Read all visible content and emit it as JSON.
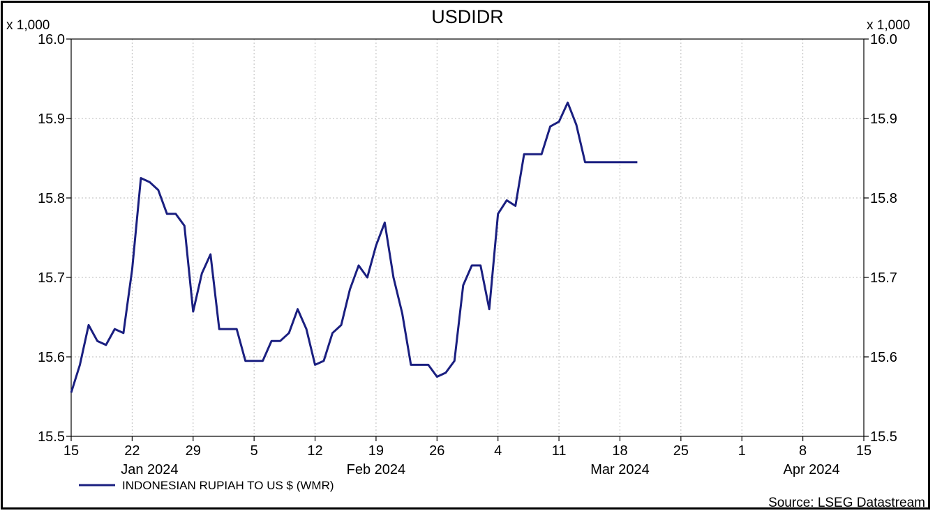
{
  "chart_data": {
    "type": "line",
    "title": "USDIDR",
    "y_multiplier_label": "x 1,000",
    "ylim": [
      15.5,
      16.0
    ],
    "y_ticks": [
      {
        "value": 15.5,
        "label": "15.5"
      },
      {
        "value": 15.6,
        "label": "15.6"
      },
      {
        "value": 15.7,
        "label": "15.7"
      },
      {
        "value": 15.8,
        "label": "15.8"
      },
      {
        "value": 15.9,
        "label": "15.9"
      },
      {
        "value": 16.0,
        "label": "16.0"
      }
    ],
    "xlim": [
      "2024-01-15",
      "2024-04-15"
    ],
    "x_ticks": [
      {
        "date": "2024-01-15",
        "label": "15"
      },
      {
        "date": "2024-01-22",
        "label": "22"
      },
      {
        "date": "2024-01-29",
        "label": "29"
      },
      {
        "date": "2024-02-05",
        "label": "5"
      },
      {
        "date": "2024-02-12",
        "label": "12"
      },
      {
        "date": "2024-02-19",
        "label": "19"
      },
      {
        "date": "2024-02-26",
        "label": "26"
      },
      {
        "date": "2024-03-04",
        "label": "4"
      },
      {
        "date": "2024-03-11",
        "label": "11"
      },
      {
        "date": "2024-03-18",
        "label": "18"
      },
      {
        "date": "2024-03-25",
        "label": "25"
      },
      {
        "date": "2024-04-01",
        "label": "1"
      },
      {
        "date": "2024-04-08",
        "label": "8"
      },
      {
        "date": "2024-04-15",
        "label": "15"
      }
    ],
    "month_labels": [
      {
        "date": "2024-01-24",
        "label": "Jan 2024"
      },
      {
        "date": "2024-02-19",
        "label": "Feb 2024"
      },
      {
        "date": "2024-03-18",
        "label": "Mar 2024"
      },
      {
        "date": "2024-04-09",
        "label": "Apr 2024"
      }
    ],
    "grid": true,
    "legend_position": "bottom-left",
    "source": "Source: LSEG Datastream",
    "series": [
      {
        "name": "INDONESIAN RUPIAH TO US $ (WMR)",
        "color": "#1a1f80",
        "points": [
          [
            "2024-01-15",
            15.555
          ],
          [
            "2024-01-16",
            15.59
          ],
          [
            "2024-01-17",
            15.64
          ],
          [
            "2024-01-18",
            15.62
          ],
          [
            "2024-01-19",
            15.615
          ],
          [
            "2024-01-20",
            15.635
          ],
          [
            "2024-01-21",
            15.63
          ],
          [
            "2024-01-22",
            15.71
          ],
          [
            "2024-01-23",
            15.825
          ],
          [
            "2024-01-24",
            15.82
          ],
          [
            "2024-01-25",
            15.81
          ],
          [
            "2024-01-26",
            15.78
          ],
          [
            "2024-01-27",
            15.78
          ],
          [
            "2024-01-28",
            15.765
          ],
          [
            "2024-01-29",
            15.657
          ],
          [
            "2024-01-30",
            15.705
          ],
          [
            "2024-01-31",
            15.729
          ],
          [
            "2024-02-01",
            15.635
          ],
          [
            "2024-02-02",
            15.635
          ],
          [
            "2024-02-03",
            15.635
          ],
          [
            "2024-02-04",
            15.595
          ],
          [
            "2024-02-05",
            15.595
          ],
          [
            "2024-02-06",
            15.595
          ],
          [
            "2024-02-07",
            15.62
          ],
          [
            "2024-02-08",
            15.62
          ],
          [
            "2024-02-09",
            15.63
          ],
          [
            "2024-02-10",
            15.66
          ],
          [
            "2024-02-11",
            15.635
          ],
          [
            "2024-02-12",
            15.59
          ],
          [
            "2024-02-13",
            15.595
          ],
          [
            "2024-02-14",
            15.63
          ],
          [
            "2024-02-15",
            15.64
          ],
          [
            "2024-02-16",
            15.685
          ],
          [
            "2024-02-17",
            15.715
          ],
          [
            "2024-02-18",
            15.7
          ],
          [
            "2024-02-19",
            15.74
          ],
          [
            "2024-02-20",
            15.769
          ],
          [
            "2024-02-21",
            15.7
          ],
          [
            "2024-02-22",
            15.655
          ],
          [
            "2024-02-23",
            15.59
          ],
          [
            "2024-02-24",
            15.59
          ],
          [
            "2024-02-25",
            15.59
          ],
          [
            "2024-02-26",
            15.575
          ],
          [
            "2024-02-27",
            15.58
          ],
          [
            "2024-02-28",
            15.595
          ],
          [
            "2024-02-29",
            15.69
          ],
          [
            "2024-03-01",
            15.715
          ],
          [
            "2024-03-02",
            15.715
          ],
          [
            "2024-03-03",
            15.66
          ],
          [
            "2024-03-04",
            15.78
          ],
          [
            "2024-03-05",
            15.797
          ],
          [
            "2024-03-06",
            15.79
          ],
          [
            "2024-03-07",
            15.855
          ],
          [
            "2024-03-08",
            15.855
          ],
          [
            "2024-03-09",
            15.855
          ],
          [
            "2024-03-10",
            15.89
          ],
          [
            "2024-03-11",
            15.896
          ],
          [
            "2024-03-12",
            15.92
          ],
          [
            "2024-03-13",
            15.892
          ],
          [
            "2024-03-14",
            15.845
          ],
          [
            "2024-03-15",
            15.845
          ],
          [
            "2024-03-16",
            15.845
          ],
          [
            "2024-03-17",
            15.845
          ],
          [
            "2024-03-18",
            15.845
          ],
          [
            "2024-03-19",
            15.845
          ],
          [
            "2024-03-20",
            15.845
          ]
        ]
      }
    ]
  }
}
